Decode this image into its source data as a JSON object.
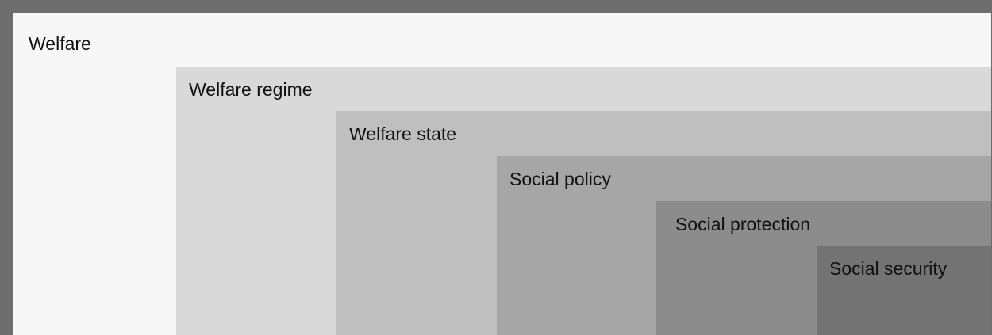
{
  "diagram": {
    "levels": [
      {
        "label": "Welfare",
        "color": "#f7f7f7"
      },
      {
        "label": "Welfare regime",
        "color": "#d9d9d9"
      },
      {
        "label": "Welfare state",
        "color": "#bfbfbf"
      },
      {
        "label": "Social policy",
        "color": "#a6a6a6"
      },
      {
        "label": "Social protection",
        "color": "#8c8c8c"
      },
      {
        "label": "Social security",
        "color": "#737373"
      }
    ],
    "frame_color": "#6e6e6e"
  }
}
